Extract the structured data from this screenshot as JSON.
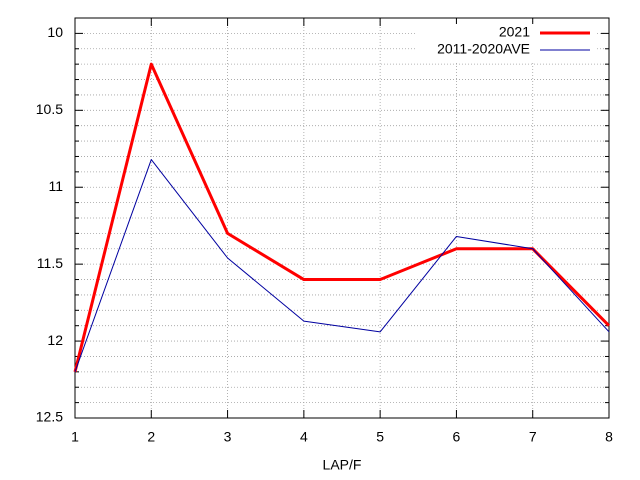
{
  "chart_data": {
    "type": "line",
    "x_label": "LAP/F",
    "x": [
      1,
      2,
      3,
      4,
      5,
      6,
      7,
      8
    ],
    "series": [
      {
        "name": "2021",
        "color": "#ff0000",
        "width": 3,
        "values": [
          12.2,
          10.2,
          11.3,
          11.6,
          11.6,
          11.4,
          11.4,
          11.9
        ]
      },
      {
        "name": "2011-2020AVE",
        "color": "#0000a0",
        "width": 1,
        "values": [
          12.2,
          10.82,
          11.46,
          11.87,
          11.94,
          11.32,
          11.4,
          11.94
        ]
      }
    ],
    "xlim": [
      1,
      8
    ],
    "xticks": [
      1,
      2,
      3,
      4,
      5,
      6,
      7,
      8
    ],
    "ylim": [
      12.5,
      9.9
    ],
    "yticks": [
      10,
      10.5,
      11,
      11.5,
      12,
      12.5
    ],
    "y_minor_ticks": [
      10.1,
      10.2,
      10.3,
      10.4,
      10.6,
      10.7,
      10.8,
      10.9,
      11.1,
      11.2,
      11.3,
      11.4,
      11.6,
      11.7,
      11.8,
      11.9,
      12.1,
      12.2,
      12.3,
      12.4
    ],
    "grid": true,
    "legend": "top-right"
  }
}
